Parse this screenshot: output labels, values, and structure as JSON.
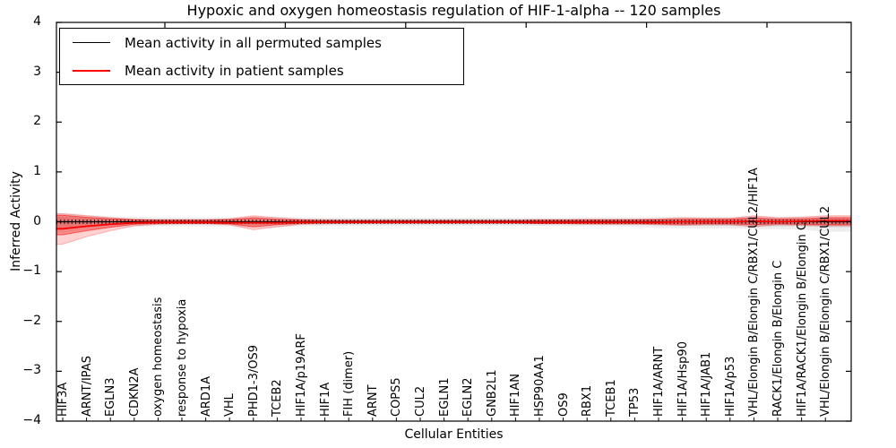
{
  "chart_data": {
    "type": "line",
    "title": "Hypoxic and oxygen homeostasis regulation of HIF-1-alpha -- 120 samples",
    "xlabel": "Cellular Entities",
    "ylabel": "Inferred Activity",
    "ylim": [
      -4,
      4
    ],
    "ytick_values": [
      4,
      3,
      2,
      1,
      0,
      -1,
      -2,
      -3,
      -4
    ],
    "ytick_labels": [
      "4",
      "3",
      "2",
      "1",
      "0",
      "−1",
      "−2",
      "−3",
      "−4"
    ],
    "grid": false,
    "legend_position": "upper left",
    "background": "#ffffff",
    "categories": [
      "HIF3A",
      "ARNT/IPAS",
      "EGLN3",
      "CDKN2A",
      "oxygen homeostasis",
      "response to hypoxia",
      "ARD1A",
      "VHL",
      "PHD1-3/OS9",
      "TCEB2",
      "HIF1A/p19ARF",
      "HIF1A",
      "FIH (dimer)",
      "ARNT",
      "COPS5",
      "CUL2",
      "EGLN1",
      "EGLN2",
      "GNB2L1",
      "HIF1AN",
      "HSP90AA1",
      "OS9",
      "RBX1",
      "TCEB1",
      "TP53",
      "HIF1A/ARNT",
      "HIF1A/Hsp90",
      "HIF1A/JAB1",
      "HIF1A/p53",
      "VHL/Elongin B/Elongin C/RBX1/CUL2/HIF1A",
      "RACK1/Elongin B/Elongin C",
      "HIF1A/RACK1/Elongin B/Elongin C",
      "VHL/Elongin B/Elongin C/RBX1/CUL2"
    ],
    "series": [
      {
        "name": "Mean activity in all permuted samples",
        "color": "#000000",
        "values": [
          0,
          0,
          0,
          0,
          0,
          0,
          0,
          0,
          0,
          0,
          0,
          0,
          0,
          0,
          0,
          0,
          0,
          0,
          0,
          0,
          0,
          0,
          0,
          0,
          0,
          0,
          0,
          0,
          0,
          0,
          0,
          0,
          0
        ]
      },
      {
        "name": "Mean activity in patient samples",
        "color": "#ff0000",
        "values": [
          -0.14,
          -0.09,
          -0.05,
          -0.02,
          -0.01,
          -0.01,
          -0.01,
          -0.02,
          -0.02,
          -0.02,
          -0.01,
          -0.01,
          -0.01,
          -0.01,
          -0.01,
          -0.01,
          -0.01,
          -0.01,
          -0.01,
          -0.01,
          -0.01,
          -0.01,
          -0.01,
          -0.01,
          -0.01,
          -0.01,
          0,
          0,
          0,
          0.01,
          0,
          0.01,
          0.02
        ]
      }
    ],
    "bands": [
      {
        "name": "permuted-samples-range-outer",
        "color": "#000000",
        "opacity": 0.07,
        "upper": [
          0.18,
          0.14,
          0.11,
          0.1,
          0.09,
          0.09,
          0.09,
          0.09,
          0.1,
          0.1,
          0.09,
          0.08,
          0.08,
          0.08,
          0.08,
          0.08,
          0.08,
          0.08,
          0.08,
          0.08,
          0.08,
          0.08,
          0.09,
          0.09,
          0.09,
          0.1,
          0.1,
          0.1,
          0.1,
          0.11,
          0.1,
          0.11,
          0.11
        ],
        "lower": [
          -0.22,
          -0.16,
          -0.12,
          -0.1,
          -0.09,
          -0.09,
          -0.09,
          -0.1,
          -0.12,
          -0.11,
          -0.09,
          -0.08,
          -0.08,
          -0.08,
          -0.08,
          -0.08,
          -0.08,
          -0.08,
          -0.08,
          -0.08,
          -0.08,
          -0.09,
          -0.09,
          -0.09,
          -0.1,
          -0.12,
          -0.13,
          -0.13,
          -0.13,
          -0.15,
          -0.15,
          -0.16,
          -0.2
        ]
      },
      {
        "name": "permuted-samples-range-inner",
        "color": "#000000",
        "opacity": 0.1,
        "upper": [
          0.1,
          0.08,
          0.07,
          0.06,
          0.05,
          0.05,
          0.05,
          0.06,
          0.06,
          0.06,
          0.05,
          0.05,
          0.05,
          0.05,
          0.05,
          0.05,
          0.05,
          0.05,
          0.05,
          0.05,
          0.05,
          0.05,
          0.05,
          0.05,
          0.06,
          0.06,
          0.06,
          0.06,
          0.06,
          0.07,
          0.07,
          0.07,
          0.07
        ],
        "lower": [
          -0.12,
          -0.09,
          -0.07,
          -0.06,
          -0.05,
          -0.05,
          -0.05,
          -0.06,
          -0.07,
          -0.06,
          -0.05,
          -0.05,
          -0.05,
          -0.05,
          -0.05,
          -0.05,
          -0.05,
          -0.05,
          -0.05,
          -0.05,
          -0.05,
          -0.05,
          -0.05,
          -0.06,
          -0.06,
          -0.07,
          -0.08,
          -0.08,
          -0.08,
          -0.09,
          -0.09,
          -0.09,
          -0.11
        ]
      },
      {
        "name": "patient-samples-range-outer",
        "color": "#ff0000",
        "opacity": 0.18,
        "stroke_opacity": 0.25,
        "upper": [
          0.16,
          0.12,
          0.08,
          0.05,
          0.04,
          0.04,
          0.04,
          0.06,
          0.12,
          0.08,
          0.05,
          0.04,
          0.03,
          0.03,
          0.03,
          0.03,
          0.03,
          0.03,
          0.03,
          0.03,
          0.04,
          0.04,
          0.05,
          0.05,
          0.05,
          0.06,
          0.08,
          0.07,
          0.07,
          0.12,
          0.08,
          0.09,
          0.12
        ],
        "lower": [
          -0.45,
          -0.3,
          -0.18,
          -0.08,
          -0.05,
          -0.04,
          -0.04,
          -0.06,
          -0.16,
          -0.1,
          -0.05,
          -0.04,
          -0.03,
          -0.03,
          -0.03,
          -0.03,
          -0.03,
          -0.03,
          -0.03,
          -0.03,
          -0.04,
          -0.04,
          -0.05,
          -0.05,
          -0.05,
          -0.06,
          -0.07,
          -0.06,
          -0.06,
          -0.1,
          -0.06,
          -0.07,
          -0.08
        ]
      },
      {
        "name": "patient-samples-range-inner",
        "color": "#ff0000",
        "opacity": 0.32,
        "stroke_opacity": 0.55,
        "upper": [
          0.13,
          0.09,
          0.06,
          0.04,
          0.03,
          0.03,
          0.03,
          0.04,
          0.08,
          0.05,
          0.03,
          0.02,
          0.02,
          0.02,
          0.02,
          0.02,
          0.02,
          0.02,
          0.02,
          0.02,
          0.03,
          0.03,
          0.03,
          0.03,
          0.03,
          0.04,
          0.05,
          0.05,
          0.05,
          0.08,
          0.05,
          0.06,
          0.08
        ],
        "lower": [
          -0.26,
          -0.18,
          -0.11,
          -0.05,
          -0.03,
          -0.03,
          -0.03,
          -0.04,
          -0.1,
          -0.06,
          -0.03,
          -0.02,
          -0.02,
          -0.02,
          -0.02,
          -0.02,
          -0.02,
          -0.02,
          -0.02,
          -0.02,
          -0.03,
          -0.03,
          -0.03,
          -0.03,
          -0.03,
          -0.04,
          -0.05,
          -0.04,
          -0.04,
          -0.06,
          -0.04,
          -0.05,
          -0.06
        ]
      }
    ]
  }
}
